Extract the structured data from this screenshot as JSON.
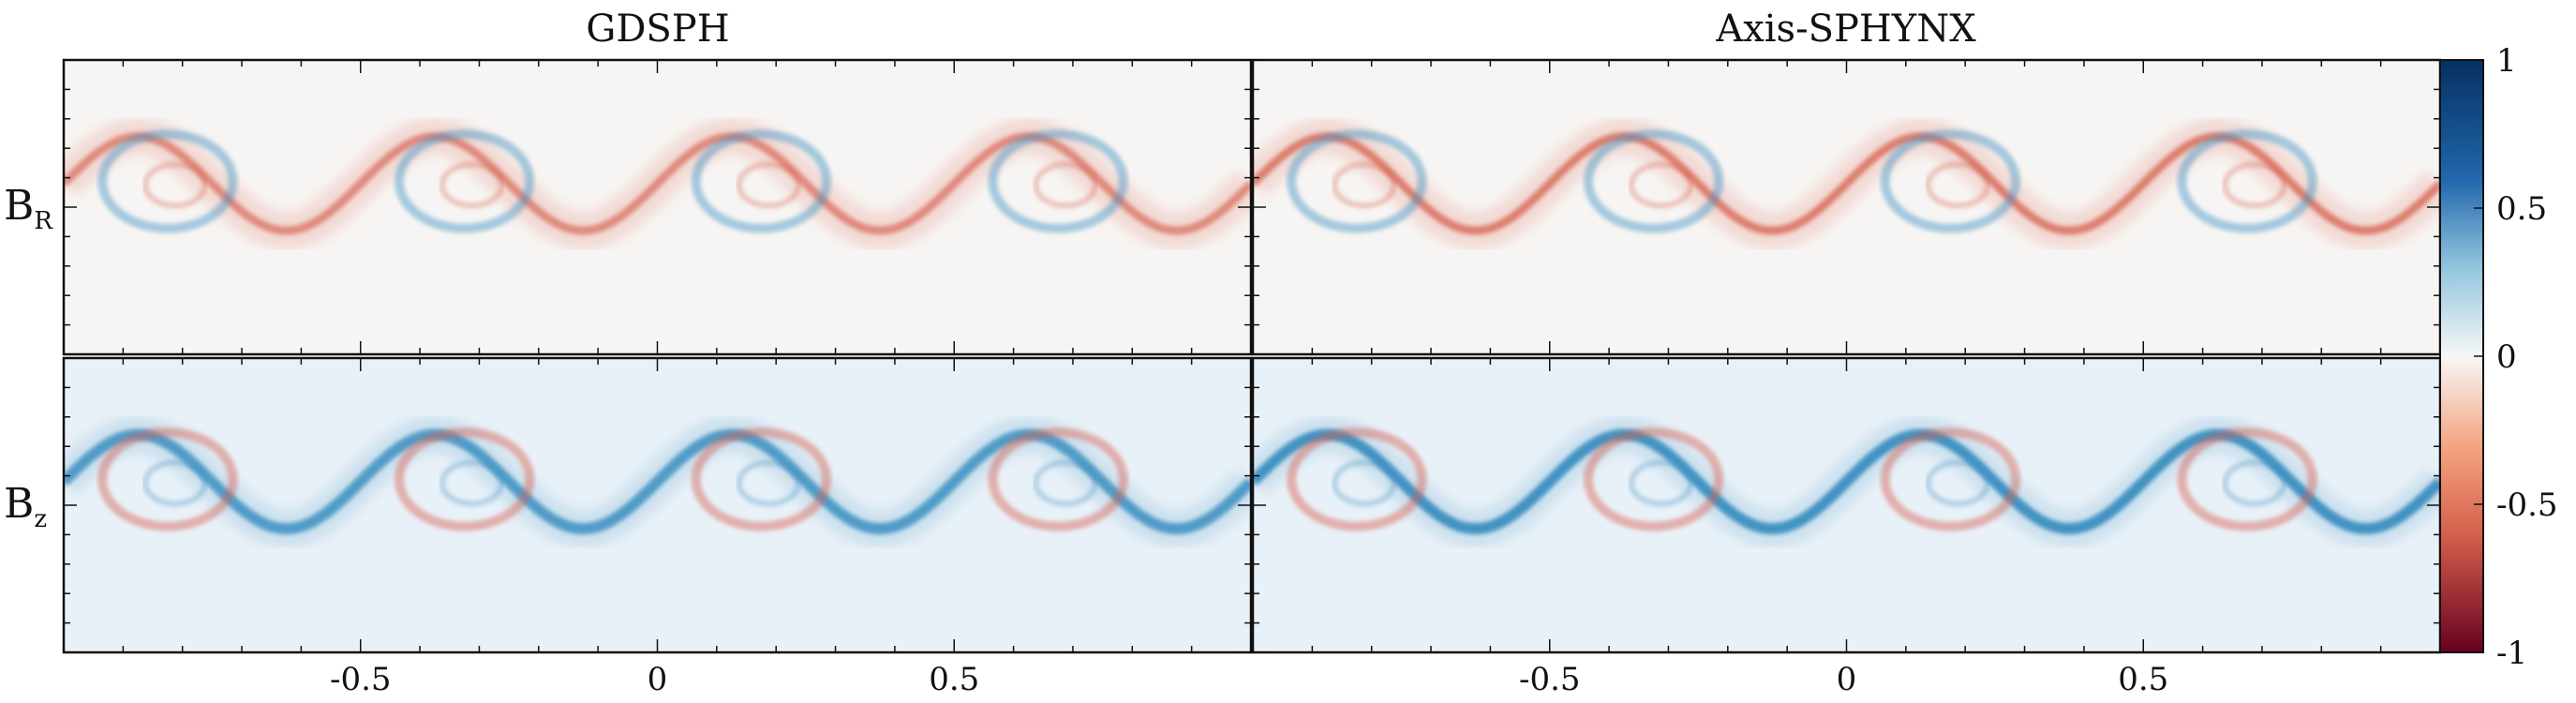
{
  "chart_data": {
    "type": "heatmap",
    "column_titles": [
      "GDSPH",
      "Axis-SPHYNX"
    ],
    "row_labels": [
      {
        "main": "B",
        "sub": "R"
      },
      {
        "main": "B",
        "sub": "z"
      }
    ],
    "x_ticks": [
      "-0.5",
      "0",
      "0.5"
    ],
    "x_tick_values": [
      -0.5,
      0,
      0.5
    ],
    "xlim": [
      -1,
      1
    ],
    "colorbar": {
      "ticks": [
        "1",
        "0.5",
        "0",
        "-0.5",
        "-1"
      ],
      "tick_values": [
        1,
        0.5,
        0,
        -0.5,
        -1
      ],
      "range": [
        -1,
        1
      ],
      "colormap": "RdBu"
    },
    "panels": [
      {
        "column": "GDSPH",
        "row": "B_R",
        "periods": 4,
        "amplitude": 0.5,
        "sign": -1
      },
      {
        "column": "Axis-SPHYNX",
        "row": "B_R",
        "periods": 4,
        "amplitude": 0.6,
        "sign": -1
      },
      {
        "column": "GDSPH",
        "row": "B_z",
        "periods": 4,
        "amplitude": 0.75,
        "sign": 1
      },
      {
        "column": "Axis-SPHYNX",
        "row": "B_z",
        "periods": 4,
        "amplitude": 0.85,
        "sign": 1
      }
    ]
  },
  "colors": {
    "positive_max": "#053061",
    "positive_mid": "#4393c3",
    "zero": "#f7f7f7",
    "negative_mid": "#d6604d",
    "negative_max": "#67001f"
  }
}
